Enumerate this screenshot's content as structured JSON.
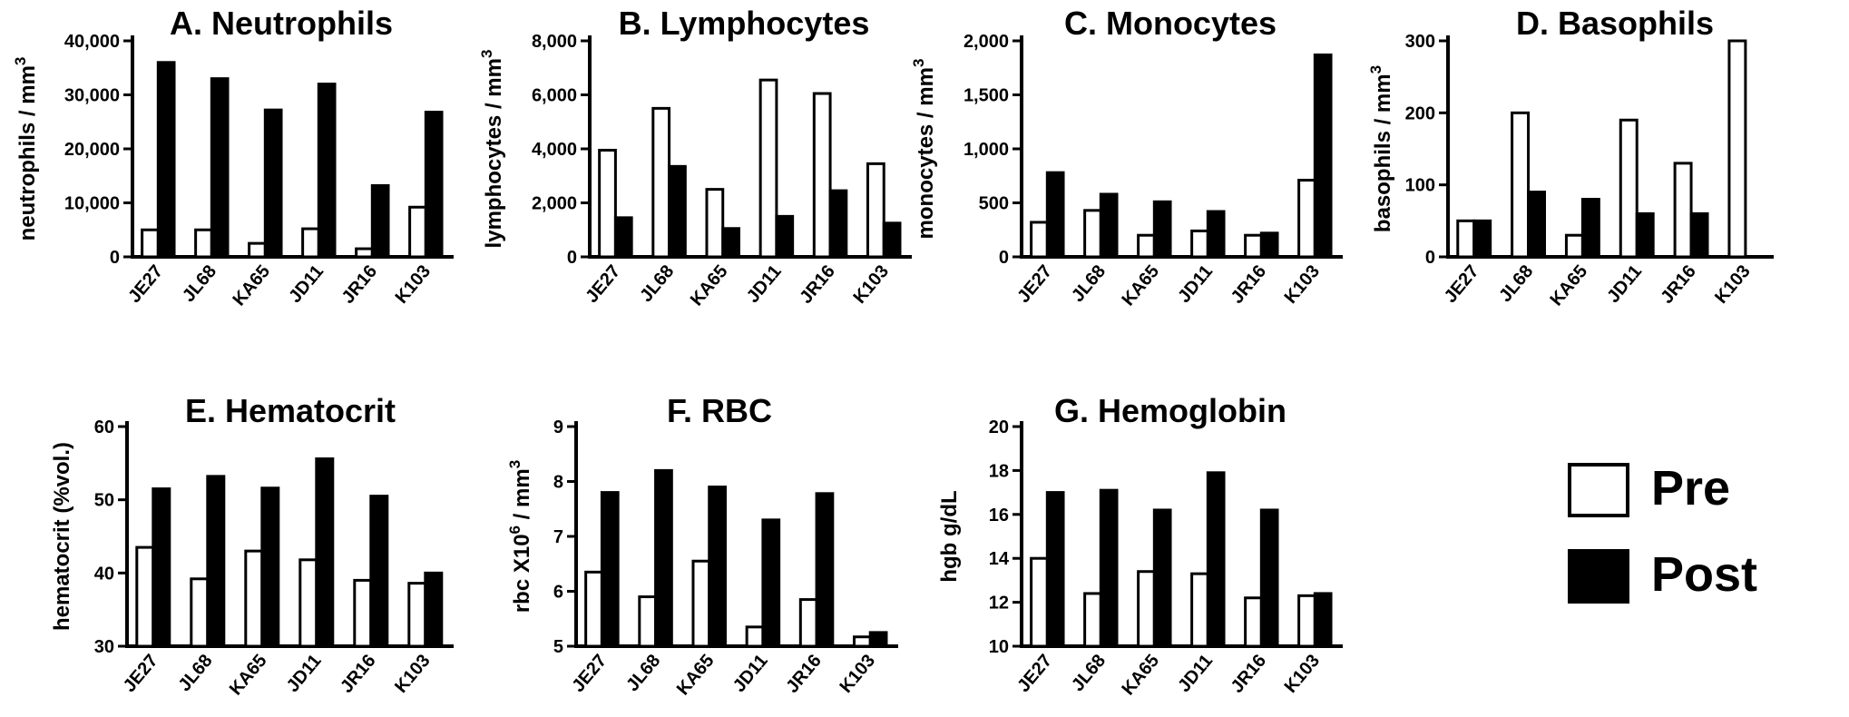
{
  "chart_data": [
    {
      "id": "A",
      "type": "bar",
      "title": "A. Neutrophils",
      "ylabel": "neutrophils / mm",
      "ylabel_sup": "3",
      "xlabel": "",
      "categories": [
        "JE27",
        "JL68",
        "KA65",
        "JD11",
        "JR16",
        "K103"
      ],
      "ylim": [
        0,
        40000
      ],
      "ytick_labels": [
        "0",
        "10,000",
        "20,000",
        "30,000",
        "40,000"
      ],
      "series": [
        {
          "name": "Pre",
          "values": [
            5000,
            5000,
            2500,
            5200,
            1500,
            9200
          ]
        },
        {
          "name": "Post",
          "values": [
            36000,
            33000,
            27200,
            32000,
            13200,
            26800
          ]
        }
      ]
    },
    {
      "id": "B",
      "type": "bar",
      "title": "B. Lymphocytes",
      "ylabel": "lymphocytes / mm",
      "ylabel_sup": "3",
      "xlabel": "",
      "categories": [
        "JE27",
        "JL68",
        "KA65",
        "JD11",
        "JR16",
        "K103"
      ],
      "ylim": [
        0,
        8000
      ],
      "ytick_labels": [
        "0",
        "2,000",
        "4,000",
        "6,000",
        "8,000"
      ],
      "series": [
        {
          "name": "Pre",
          "values": [
            3950,
            5500,
            2500,
            6550,
            6050,
            3450
          ]
        },
        {
          "name": "Post",
          "values": [
            1450,
            3350,
            1050,
            1500,
            2450,
            1250
          ]
        }
      ]
    },
    {
      "id": "C",
      "type": "bar",
      "title": "C. Monocytes",
      "ylabel": "monocytes / mm",
      "ylabel_sup": "3",
      "xlabel": "",
      "categories": [
        "JE27",
        "JL68",
        "KA65",
        "JD11",
        "JR16",
        "K103"
      ],
      "ylim": [
        0,
        2000
      ],
      "ytick_labels": [
        "0",
        "500",
        "1,000",
        "1,500",
        "2,000"
      ],
      "series": [
        {
          "name": "Pre",
          "values": [
            320,
            430,
            200,
            240,
            200,
            710
          ]
        },
        {
          "name": "Post",
          "values": [
            780,
            580,
            510,
            420,
            220,
            1870
          ]
        }
      ]
    },
    {
      "id": "D",
      "type": "bar",
      "title": "D. Basophils",
      "ylabel": "basophils / mm",
      "ylabel_sup": "3",
      "xlabel": "",
      "categories": [
        "JE27",
        "JL68",
        "KA65",
        "JD11",
        "JR16",
        "K103"
      ],
      "ylim": [
        0,
        300
      ],
      "ytick_labels": [
        "0",
        "100",
        "200",
        "300"
      ],
      "series": [
        {
          "name": "Pre",
          "values": [
            50,
            200,
            30,
            190,
            130,
            300
          ]
        },
        {
          "name": "Post",
          "values": [
            50,
            90,
            80,
            60,
            60,
            0
          ]
        }
      ]
    },
    {
      "id": "E",
      "type": "bar",
      "title": "E. Hematocrit",
      "ylabel": "hematocrit (%vol.)",
      "ylabel_sup": "",
      "xlabel": "",
      "categories": [
        "JE27",
        "JL68",
        "KA65",
        "JD11",
        "JR16",
        "K103"
      ],
      "ylim": [
        30,
        60
      ],
      "ytick_labels": [
        "30",
        "40",
        "50",
        "60"
      ],
      "series": [
        {
          "name": "Pre",
          "values": [
            43.5,
            39.2,
            43,
            41.8,
            39,
            38.6
          ]
        },
        {
          "name": "Post",
          "values": [
            51.5,
            53.2,
            51.6,
            55.6,
            50.5,
            40
          ]
        }
      ]
    },
    {
      "id": "F",
      "type": "bar",
      "title": "F. RBC",
      "ylabel": "rbc X10",
      "ylabel_sup": "6",
      "ylabel_suffix": " / mm",
      "ylabel_sup2": "3",
      "xlabel": "",
      "categories": [
        "JE27",
        "JL68",
        "KA65",
        "JD11",
        "JR16",
        "K103"
      ],
      "ylim": [
        5,
        9
      ],
      "ytick_labels": [
        "5",
        "6",
        "7",
        "8",
        "9"
      ],
      "series": [
        {
          "name": "Pre",
          "values": [
            6.35,
            5.9,
            6.55,
            5.35,
            5.85,
            5.17
          ]
        },
        {
          "name": "Post",
          "values": [
            7.8,
            8.2,
            7.9,
            7.3,
            7.78,
            5.25
          ]
        }
      ]
    },
    {
      "id": "G",
      "type": "bar",
      "title": "G. Hemoglobin",
      "ylabel": "hgb g/dL",
      "ylabel_sup": "",
      "xlabel": "",
      "categories": [
        "JE27",
        "JL68",
        "KA65",
        "JD11",
        "JR16",
        "K103"
      ],
      "ylim": [
        10,
        20
      ],
      "ytick_labels": [
        "10",
        "12",
        "14",
        "16",
        "18",
        "20"
      ],
      "series": [
        {
          "name": "Pre",
          "values": [
            14,
            12.4,
            13.4,
            13.3,
            12.2,
            12.3
          ]
        },
        {
          "name": "Post",
          "values": [
            17,
            17.1,
            16.2,
            17.9,
            16.2,
            12.4
          ]
        }
      ]
    }
  ],
  "legend": {
    "items": [
      {
        "label": "Pre",
        "fill": "#ffffff"
      },
      {
        "label": "Post",
        "fill": "#000000"
      }
    ]
  },
  "colors": {
    "pre": "#ffffff",
    "post": "#000000",
    "stroke": "#000000"
  }
}
